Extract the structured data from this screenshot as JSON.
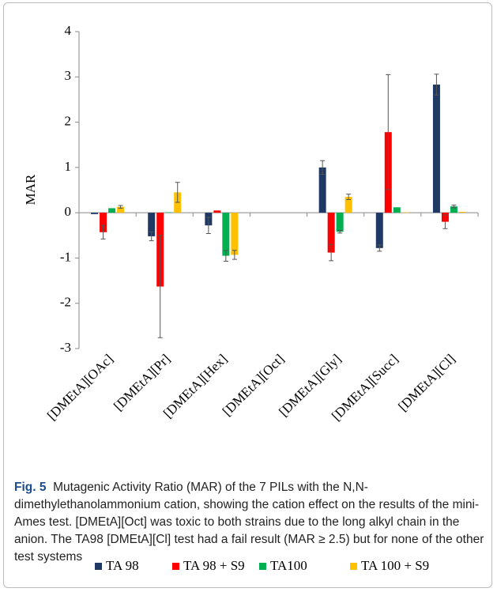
{
  "chart_data": {
    "type": "bar",
    "ylabel": "MAR",
    "categories": [
      "[DMEtA][OAc]",
      "[DMEtA][Pr]",
      "[DMEtA][Hex]",
      "[DMEtA][Oct]",
      "[DMEtA][Gly]",
      "[DMEtA][Succ]",
      "[DMEtA][Cl]"
    ],
    "series": [
      {
        "name": "TA 98",
        "color": "#1f3864",
        "values": [
          -0.03,
          -0.52,
          -0.28,
          null,
          1.0,
          -0.78,
          2.83
        ],
        "errors": [
          null,
          0.1,
          0.18,
          null,
          0.15,
          0.07,
          0.23
        ]
      },
      {
        "name": "TA 98 + S9",
        "color": "#ff0000",
        "values": [
          -0.43,
          -1.63,
          0.05,
          null,
          -0.88,
          1.78,
          -0.2
        ],
        "errors": [
          0.15,
          1.13,
          null,
          null,
          0.18,
          1.27,
          0.15
        ]
      },
      {
        "name": "TA100",
        "color": "#00b050",
        "values": [
          0.1,
          0.01,
          -0.95,
          null,
          -0.42,
          0.12,
          0.14
        ],
        "errors": [
          null,
          null,
          0.12,
          null,
          0.03,
          null,
          0.03
        ]
      },
      {
        "name": "TA 100 + S9",
        "color": "#ffc000",
        "values": [
          0.13,
          0.45,
          -0.93,
          null,
          0.35,
          0.01,
          0.02
        ],
        "errors": [
          0.03,
          0.22,
          0.1,
          null,
          0.06,
          null,
          null
        ]
      }
    ],
    "ylim": [
      -3,
      4
    ],
    "yticks": [
      -3,
      -2,
      -1,
      0,
      1,
      2,
      3,
      4
    ],
    "grid": false,
    "caption_label": "Fig. 5",
    "caption": "Mutagenic Activity Ratio (MAR) of the 7 PILs with the N,N-dimethylethanolammonium cation, showing the cation effect on the results of the mini-Ames test. [DMEtA][Oct] was toxic to both strains due to the long alkyl chain in the anion. The TA98 [DMEtA][Cl] test had a fail result (MAR ≥ 2.5) but for none of the other test systems"
  }
}
